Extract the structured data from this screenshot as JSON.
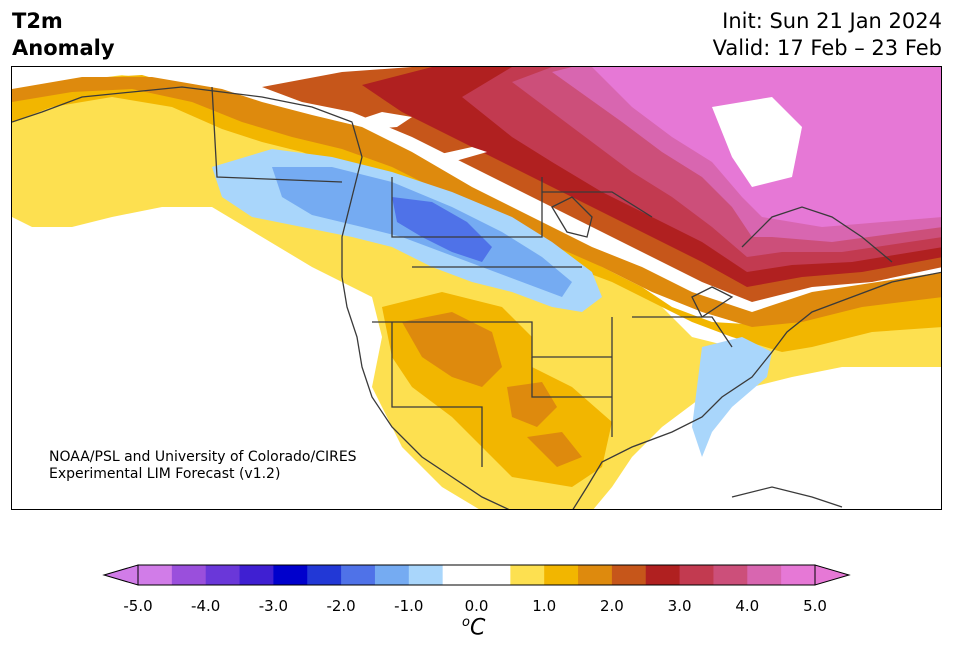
{
  "header": {
    "title_line1": "T2m",
    "title_line2": "Anomaly",
    "init_label": "Init: Sun 21 Jan 2024",
    "valid_label": "Valid: 17 Feb – 23 Feb"
  },
  "credit": {
    "line1": "NOAA/PSL and University of Colorado/CIRES",
    "line2": "Experimental LIM Forecast (v1.2)"
  },
  "colorbar": {
    "unit": "C",
    "unit_prefix": "o",
    "ticks": [
      "-5.0",
      "-4.0",
      "-3.0",
      "-2.0",
      "-1.0",
      "0.0",
      "1.0",
      "2.0",
      "3.0",
      "4.0",
      "5.0"
    ],
    "colors": [
      "#d17ce8",
      "#9a4fdc",
      "#6a37d9",
      "#3f1fd2",
      "#0000cc",
      "#2238d6",
      "#4f72e8",
      "#75abf2",
      "#a9d6fb",
      "#ffffff",
      "#ffffff",
      "#fde050",
      "#f2b600",
      "#de8a0d",
      "#c6561a",
      "#b02020",
      "#c23a50",
      "#cc4f7a",
      "#d866b0",
      "#e678d6"
    ],
    "under_color": "#d17ce8",
    "over_color": "#e678d6"
  },
  "map": {
    "region": "North America",
    "anomaly_colors": {
      "blue_dark": "#4f72e8",
      "blue_mid": "#75abf2",
      "blue_light": "#a9d6fb",
      "yellow": "#fde050",
      "gold": "#f2b600",
      "orange": "#de8a0d",
      "burnt": "#c6561a",
      "red": "#b02020",
      "rose": "#c23a50",
      "pink": "#cc4f7a",
      "magenta": "#d866b0",
      "violet": "#e678d6"
    }
  }
}
